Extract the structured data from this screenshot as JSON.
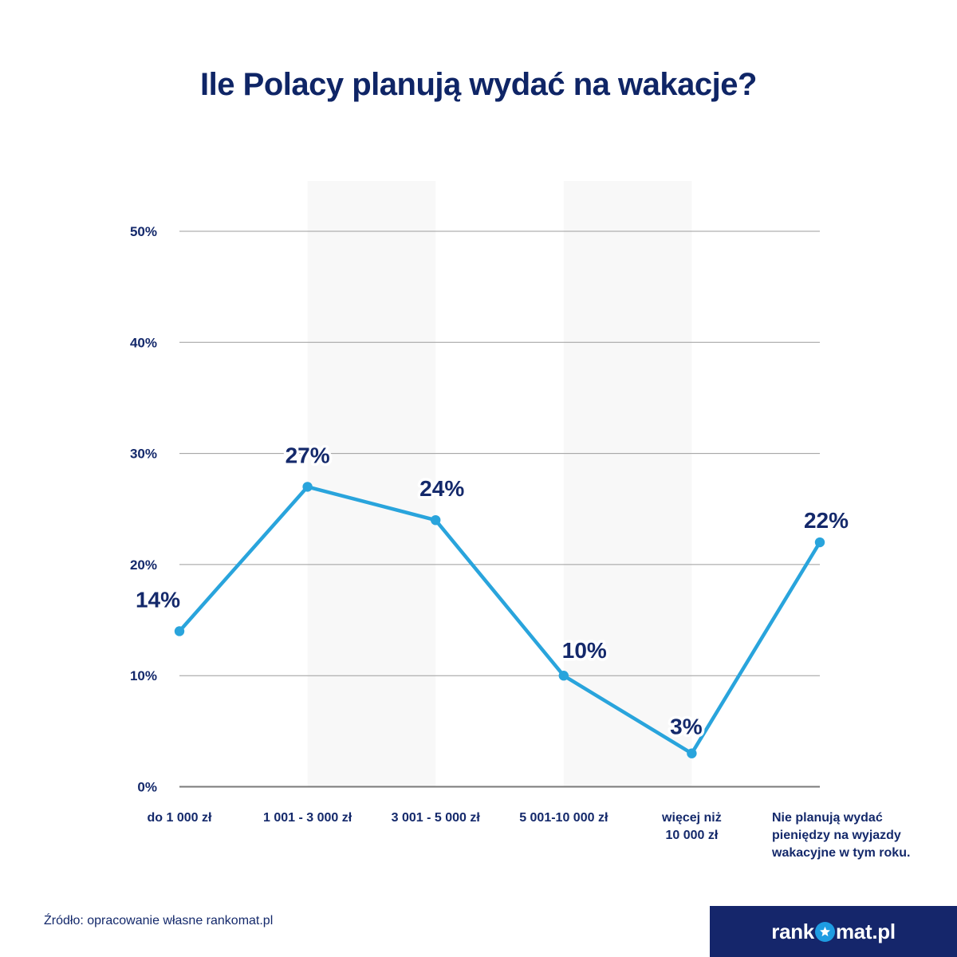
{
  "page": {
    "title": "Ile Polacy planują wydać na wakacje?",
    "source": "Źródło: opracowanie własne rankomat.pl",
    "logo": {
      "prefix": "rank",
      "suffix": "mat.pl",
      "star_icon": "star-in-circle"
    }
  },
  "colors": {
    "navy": "#14296b",
    "title_navy": "#0f2566",
    "line_blue": "#29a4dc",
    "gridline": "#9c9c9c",
    "axis_line": "#7a7a7a",
    "band": "#f8f8f8",
    "logo_bg": "#15266b",
    "star_circle": "#1e9ce2",
    "white": "#ffffff"
  },
  "chart_data": {
    "type": "line",
    "title": "Ile Polacy planują wydać na wakacje?",
    "categories": [
      [
        "do 1 000 zł"
      ],
      [
        "1 001 - 3 000 zł"
      ],
      [
        "3 001 - 5 000 zł"
      ],
      [
        "5 001-10 000 zł"
      ],
      [
        "więcej niż",
        "10 000 zł"
      ],
      [
        "Nie planują wydać",
        "pieniędzy na wyjazdy",
        "wakacyjne w tym roku."
      ]
    ],
    "values": [
      14,
      27,
      24,
      10,
      3,
      22
    ],
    "point_labels": [
      "14%",
      "27%",
      "24%",
      "10%",
      "3%",
      "22%"
    ],
    "yticks": [
      0,
      10,
      20,
      30,
      40,
      50
    ],
    "ytick_labels": [
      "0%",
      "10%",
      "20%",
      "30%",
      "40%",
      "50%"
    ],
    "ylim": [
      0,
      50
    ],
    "xlabel": "",
    "ylabel": "",
    "grid": "horizontal",
    "legend": "none",
    "band_columns": [
      1,
      3
    ]
  }
}
